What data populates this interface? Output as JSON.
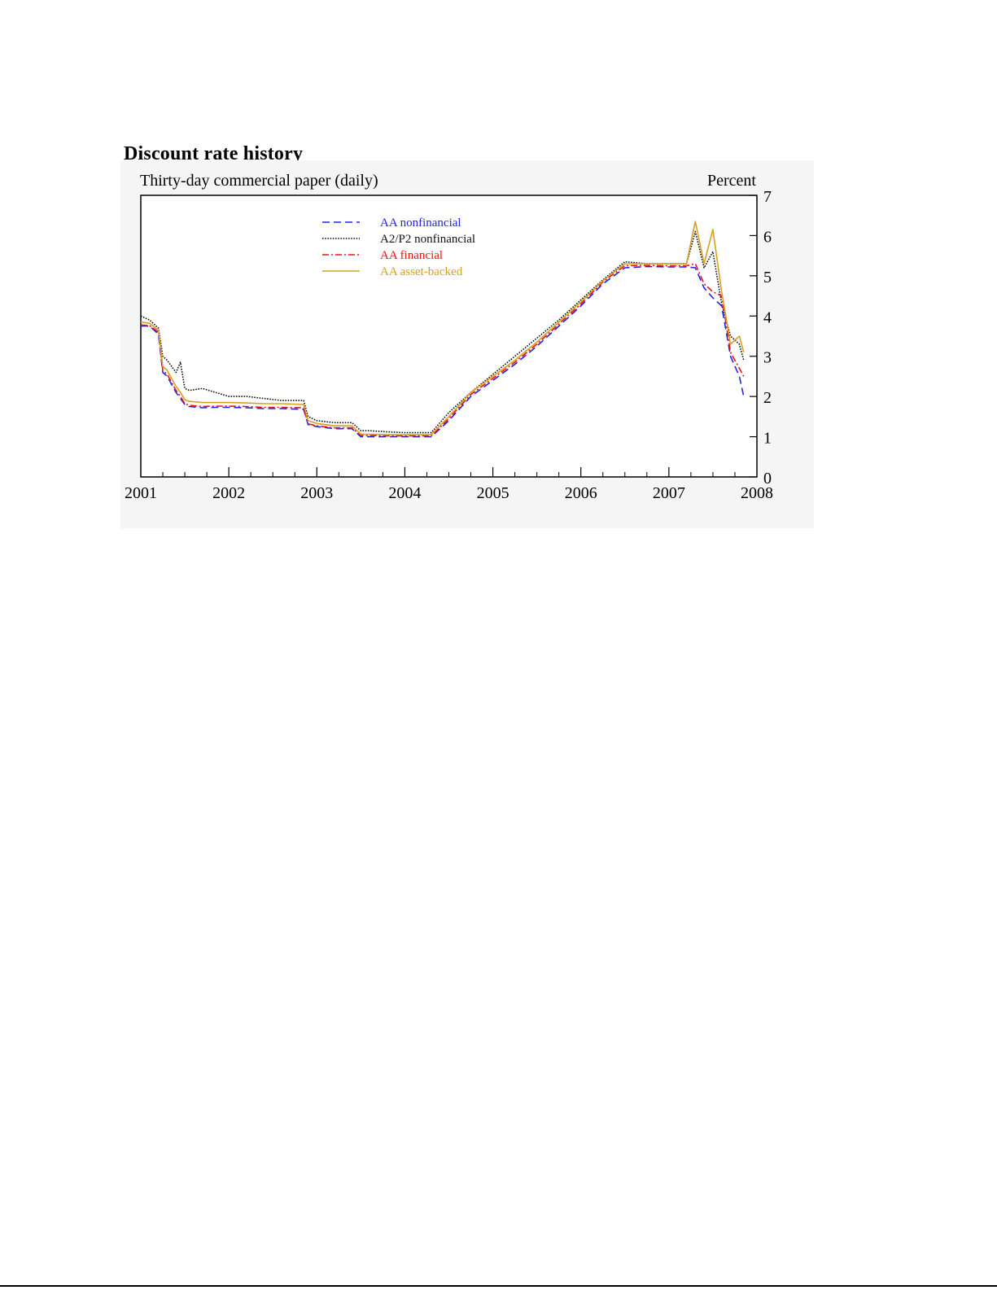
{
  "title": "Discount rate history",
  "chart_data": {
    "type": "line",
    "subtitle": "Thirty-day commercial paper (daily)",
    "ylabel": "Percent",
    "ylim": [
      0,
      7
    ],
    "yticks": [
      "0",
      "1",
      "2",
      "3",
      "4",
      "5",
      "6",
      "7"
    ],
    "xlim": [
      2001,
      2008
    ],
    "xticks": [
      "2001",
      "2002",
      "2003",
      "2004",
      "2005",
      "2006",
      "2007",
      "2008"
    ],
    "grid": false,
    "legend_position": "top-center",
    "series": [
      {
        "name": "AA nonfinancial",
        "color": "#2222ee",
        "dash": "dashed",
        "x": [
          2001.0,
          2001.1,
          2001.2,
          2001.25,
          2001.3,
          2001.4,
          2001.45,
          2001.5,
          2001.55,
          2001.7,
          2001.85,
          2002.0,
          2002.2,
          2002.4,
          2002.6,
          2002.85,
          2002.9,
          2003.0,
          2003.2,
          2003.4,
          2003.5,
          2003.6,
          2003.8,
          2004.0,
          2004.3,
          2004.5,
          2004.75,
          2005.0,
          2005.25,
          2005.5,
          2005.75,
          2006.0,
          2006.25,
          2006.5,
          2006.75,
          2007.0,
          2007.2,
          2007.3,
          2007.4,
          2007.5,
          2007.6,
          2007.7,
          2007.8,
          2007.85
        ],
        "y": [
          3.75,
          3.75,
          3.55,
          2.6,
          2.5,
          2.1,
          1.95,
          1.8,
          1.75,
          1.72,
          1.73,
          1.73,
          1.72,
          1.7,
          1.7,
          1.68,
          1.3,
          1.25,
          1.2,
          1.2,
          1.0,
          1.0,
          1.0,
          1.0,
          1.0,
          1.4,
          2.0,
          2.4,
          2.8,
          3.25,
          3.75,
          4.25,
          4.8,
          5.2,
          5.23,
          5.22,
          5.22,
          5.2,
          4.7,
          4.45,
          4.25,
          3.0,
          2.5,
          2.0
        ]
      },
      {
        "name": "A2/P2 nonfinancial",
        "color": "#111111",
        "dash": "dotted",
        "x": [
          2001.0,
          2001.1,
          2001.2,
          2001.25,
          2001.3,
          2001.4,
          2001.45,
          2001.5,
          2001.55,
          2001.7,
          2001.85,
          2002.0,
          2002.2,
          2002.4,
          2002.6,
          2002.85,
          2002.9,
          2003.0,
          2003.2,
          2003.4,
          2003.5,
          2003.6,
          2003.8,
          2004.0,
          2004.3,
          2004.5,
          2004.75,
          2005.0,
          2005.25,
          2005.5,
          2005.75,
          2006.0,
          2006.25,
          2006.5,
          2006.75,
          2007.0,
          2007.2,
          2007.3,
          2007.4,
          2007.5,
          2007.6,
          2007.7,
          2007.8,
          2007.85
        ],
        "y": [
          4.0,
          3.9,
          3.7,
          3.0,
          2.9,
          2.6,
          2.85,
          2.2,
          2.15,
          2.2,
          2.1,
          2.0,
          2.0,
          1.95,
          1.9,
          1.9,
          1.5,
          1.4,
          1.35,
          1.35,
          1.15,
          1.15,
          1.12,
          1.1,
          1.1,
          1.6,
          2.1,
          2.55,
          3.0,
          3.45,
          3.9,
          4.4,
          4.9,
          5.35,
          5.3,
          5.3,
          5.3,
          6.1,
          5.2,
          5.6,
          4.3,
          3.5,
          3.3,
          2.9
        ]
      },
      {
        "name": "AA financial",
        "color": "#ee1111",
        "dash": "dashdot",
        "x": [
          2001.0,
          2001.1,
          2001.2,
          2001.25,
          2001.3,
          2001.4,
          2001.45,
          2001.5,
          2001.55,
          2001.7,
          2001.85,
          2002.0,
          2002.2,
          2002.4,
          2002.6,
          2002.85,
          2002.9,
          2003.0,
          2003.2,
          2003.4,
          2003.5,
          2003.6,
          2003.8,
          2004.0,
          2004.3,
          2004.5,
          2004.75,
          2005.0,
          2005.25,
          2005.5,
          2005.75,
          2006.0,
          2006.25,
          2006.5,
          2006.75,
          2007.0,
          2007.2,
          2007.3,
          2007.4,
          2007.5,
          2007.6,
          2007.7,
          2007.8,
          2007.85
        ],
        "y": [
          3.78,
          3.76,
          3.6,
          2.65,
          2.55,
          2.15,
          2.0,
          1.82,
          1.78,
          1.75,
          1.76,
          1.76,
          1.75,
          1.73,
          1.73,
          1.72,
          1.32,
          1.27,
          1.22,
          1.22,
          1.03,
          1.03,
          1.02,
          1.02,
          1.02,
          1.45,
          2.05,
          2.45,
          2.85,
          3.3,
          3.8,
          4.3,
          4.85,
          5.25,
          5.26,
          5.25,
          5.25,
          5.3,
          4.8,
          4.6,
          4.5,
          3.1,
          2.7,
          2.5
        ]
      },
      {
        "name": "AA asset-backed",
        "color": "#d8a020",
        "dash": "solid",
        "x": [
          2001.0,
          2001.1,
          2001.2,
          2001.25,
          2001.3,
          2001.4,
          2001.45,
          2001.5,
          2001.55,
          2001.7,
          2001.85,
          2002.0,
          2002.2,
          2002.4,
          2002.6,
          2002.85,
          2002.9,
          2003.0,
          2003.2,
          2003.4,
          2003.5,
          2003.6,
          2003.8,
          2004.0,
          2004.3,
          2004.5,
          2004.75,
          2005.0,
          2005.25,
          2005.5,
          2005.75,
          2006.0,
          2006.25,
          2006.5,
          2006.75,
          2007.0,
          2007.2,
          2007.3,
          2007.4,
          2007.5,
          2007.6,
          2007.7,
          2007.8,
          2007.85
        ],
        "y": [
          3.85,
          3.82,
          3.65,
          2.75,
          2.65,
          2.25,
          2.1,
          1.92,
          1.88,
          1.85,
          1.85,
          1.85,
          1.84,
          1.82,
          1.82,
          1.8,
          1.4,
          1.33,
          1.27,
          1.27,
          1.06,
          1.06,
          1.05,
          1.05,
          1.05,
          1.5,
          2.1,
          2.5,
          2.9,
          3.35,
          3.85,
          4.35,
          4.88,
          5.3,
          5.3,
          5.3,
          5.3,
          6.35,
          5.3,
          6.15,
          4.6,
          3.3,
          3.5,
          3.1
        ]
      }
    ]
  }
}
